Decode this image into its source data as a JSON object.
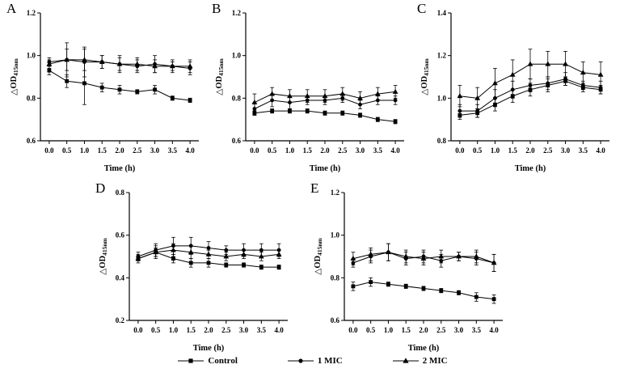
{
  "figure": {
    "background": "#ffffff",
    "line_color": "#000000"
  },
  "legend": {
    "items": [
      {
        "label": "Control",
        "marker": "square"
      },
      {
        "label": "1 MIC",
        "marker": "circle"
      },
      {
        "label": "2 MIC",
        "marker": "triangle"
      }
    ]
  },
  "chart_data": [
    {
      "type": "line",
      "panel": "A",
      "xlabel": "Time (h)",
      "ylabel": "△OD",
      "ylabel_sub": "415nm",
      "x": [
        0,
        0.5,
        1.0,
        1.5,
        2.0,
        2.5,
        3.0,
        3.5,
        4.0
      ],
      "xticks": [
        "0.0",
        "0.5",
        "1.0",
        "1.5",
        "2.0",
        "2.5",
        "3.0",
        "3.5",
        "4.0"
      ],
      "yticks": [
        "0.6",
        "0.8",
        "1.0",
        "1.2"
      ],
      "xlim": [
        -0.25,
        4.25
      ],
      "ylim": [
        0.6,
        1.2
      ],
      "series": [
        {
          "name": "Control",
          "marker": "square",
          "values": [
            0.93,
            0.88,
            0.87,
            0.85,
            0.84,
            0.83,
            0.84,
            0.8,
            0.79
          ],
          "errors": [
            0.02,
            0.03,
            0.1,
            0.02,
            0.02,
            0.01,
            0.02,
            0.01,
            0.01
          ]
        },
        {
          "name": "1 MIC",
          "marker": "circle",
          "values": [
            0.97,
            0.98,
            0.97,
            0.97,
            0.96,
            0.95,
            0.96,
            0.95,
            0.94
          ],
          "errors": [
            0.02,
            0.08,
            0.07,
            0.03,
            0.04,
            0.03,
            0.04,
            0.03,
            0.03
          ]
        },
        {
          "name": "2 MIC",
          "marker": "triangle",
          "values": [
            0.96,
            0.98,
            0.98,
            0.97,
            0.96,
            0.96,
            0.95,
            0.95,
            0.95
          ],
          "errors": [
            0.02,
            0.05,
            0.05,
            0.03,
            0.03,
            0.03,
            0.03,
            0.02,
            0.03
          ]
        }
      ]
    },
    {
      "type": "line",
      "panel": "B",
      "xlabel": "Time (h)",
      "ylabel": "△OD",
      "ylabel_sub": "415nm",
      "x": [
        0,
        0.5,
        1.0,
        1.5,
        2.0,
        2.5,
        3.0,
        3.5,
        4.0
      ],
      "xticks": [
        "0.0",
        "0.5",
        "1.0",
        "1.5",
        "2.0",
        "2.5",
        "3.0",
        "3.5",
        "4.0"
      ],
      "yticks": [
        "0.6",
        "0.8",
        "1.0",
        "1.2"
      ],
      "xlim": [
        -0.25,
        4.25
      ],
      "ylim": [
        0.6,
        1.2
      ],
      "series": [
        {
          "name": "Control",
          "marker": "square",
          "values": [
            0.73,
            0.74,
            0.74,
            0.74,
            0.73,
            0.73,
            0.72,
            0.7,
            0.69
          ],
          "errors": [
            0.01,
            0.01,
            0.01,
            0.01,
            0.01,
            0.01,
            0.01,
            0.01,
            0.01
          ]
        },
        {
          "name": "1 MIC",
          "marker": "circle",
          "values": [
            0.75,
            0.79,
            0.78,
            0.79,
            0.79,
            0.8,
            0.77,
            0.79,
            0.79
          ],
          "errors": [
            0.03,
            0.03,
            0.03,
            0.02,
            0.02,
            0.02,
            0.02,
            0.02,
            0.02
          ]
        },
        {
          "name": "2 MIC",
          "marker": "triangle",
          "values": [
            0.78,
            0.82,
            0.81,
            0.81,
            0.81,
            0.82,
            0.8,
            0.82,
            0.83
          ],
          "errors": [
            0.04,
            0.03,
            0.03,
            0.03,
            0.03,
            0.03,
            0.03,
            0.03,
            0.03
          ]
        }
      ]
    },
    {
      "type": "line",
      "panel": "C",
      "xlabel": "Time (h)",
      "ylabel": "△OD",
      "ylabel_sub": "415nm",
      "x": [
        0,
        0.5,
        1.0,
        1.5,
        2.0,
        2.5,
        3.0,
        3.5,
        4.0
      ],
      "xticks": [
        "0.0",
        "0.5",
        "1.0",
        "1.5",
        "2.0",
        "2.5",
        "3.0",
        "3.5",
        "4.0"
      ],
      "yticks": [
        "0.8",
        "1.0",
        "1.2",
        "1.4"
      ],
      "xlim": [
        -0.25,
        4.25
      ],
      "ylim": [
        0.8,
        1.4
      ],
      "series": [
        {
          "name": "Control",
          "marker": "square",
          "values": [
            0.92,
            0.93,
            0.97,
            1.01,
            1.04,
            1.06,
            1.08,
            1.05,
            1.04
          ],
          "errors": [
            0.02,
            0.02,
            0.03,
            0.03,
            0.03,
            0.03,
            0.02,
            0.02,
            0.02
          ]
        },
        {
          "name": "1 MIC",
          "marker": "circle",
          "values": [
            0.94,
            0.94,
            1.0,
            1.04,
            1.06,
            1.07,
            1.09,
            1.06,
            1.05
          ],
          "errors": [
            0.03,
            0.03,
            0.04,
            0.04,
            0.03,
            0.03,
            0.03,
            0.02,
            0.03
          ]
        },
        {
          "name": "2 MIC",
          "marker": "triangle",
          "values": [
            1.01,
            1.0,
            1.07,
            1.11,
            1.16,
            1.16,
            1.16,
            1.12,
            1.11
          ],
          "errors": [
            0.05,
            0.05,
            0.07,
            0.07,
            0.07,
            0.06,
            0.06,
            0.05,
            0.06
          ]
        }
      ]
    },
    {
      "type": "line",
      "panel": "D",
      "xlabel": "Time (h)",
      "ylabel": "△OD",
      "ylabel_sub": "415nm",
      "x": [
        0,
        0.5,
        1.0,
        1.5,
        2.0,
        2.5,
        3.0,
        3.5,
        4.0
      ],
      "xticks": [
        "0.0",
        "0.5",
        "1.0",
        "1.5",
        "2.0",
        "2.5",
        "3.0",
        "3.5",
        "4.0"
      ],
      "yticks": [
        "0.2",
        "0.4",
        "0.6",
        "0.8"
      ],
      "xlim": [
        -0.25,
        4.25
      ],
      "ylim": [
        0.2,
        0.8
      ],
      "series": [
        {
          "name": "Control",
          "marker": "square",
          "values": [
            0.49,
            0.52,
            0.49,
            0.47,
            0.47,
            0.46,
            0.46,
            0.45,
            0.45
          ],
          "errors": [
            0.01,
            0.02,
            0.02,
            0.02,
            0.02,
            0.01,
            0.01,
            0.01,
            0.01
          ]
        },
        {
          "name": "1 MIC",
          "marker": "circle",
          "values": [
            0.5,
            0.53,
            0.55,
            0.55,
            0.54,
            0.53,
            0.53,
            0.53,
            0.53
          ],
          "errors": [
            0.02,
            0.03,
            0.04,
            0.04,
            0.03,
            0.02,
            0.03,
            0.03,
            0.03
          ]
        },
        {
          "name": "2 MIC",
          "marker": "triangle",
          "values": [
            0.49,
            0.52,
            0.53,
            0.52,
            0.51,
            0.5,
            0.51,
            0.5,
            0.51
          ],
          "errors": [
            0.02,
            0.03,
            0.03,
            0.03,
            0.02,
            0.02,
            0.02,
            0.02,
            0.02
          ]
        }
      ]
    },
    {
      "type": "line",
      "panel": "E",
      "xlabel": "Time (h)",
      "ylabel": "△OD",
      "ylabel_sub": "415nm",
      "x": [
        0,
        0.5,
        1.0,
        1.5,
        2.0,
        2.5,
        3.0,
        3.5,
        4.0
      ],
      "xticks": [
        "0.0",
        "0.5",
        "1.0",
        "1.5",
        "2.0",
        "2.5",
        "3.0",
        "3.5",
        "4.0"
      ],
      "yticks": [
        "0.6",
        "0.8",
        "1.0",
        "1.2"
      ],
      "xlim": [
        -0.25,
        4.25
      ],
      "ylim": [
        0.6,
        1.2
      ],
      "series": [
        {
          "name": "Control",
          "marker": "square",
          "values": [
            0.76,
            0.78,
            0.77,
            0.76,
            0.75,
            0.74,
            0.73,
            0.71,
            0.7
          ],
          "errors": [
            0.02,
            0.02,
            0.01,
            0.01,
            0.01,
            0.01,
            0.01,
            0.02,
            0.02
          ]
        },
        {
          "name": "1 MIC",
          "marker": "circle",
          "values": [
            0.87,
            0.9,
            0.92,
            0.89,
            0.9,
            0.88,
            0.9,
            0.89,
            0.87
          ],
          "errors": [
            0.02,
            0.03,
            0.04,
            0.03,
            0.03,
            0.03,
            0.02,
            0.03,
            0.04
          ]
        },
        {
          "name": "2 MIC",
          "marker": "triangle",
          "values": [
            0.89,
            0.91,
            0.92,
            0.9,
            0.89,
            0.9,
            0.9,
            0.9,
            0.87
          ],
          "errors": [
            0.03,
            0.03,
            0.04,
            0.03,
            0.03,
            0.03,
            0.02,
            0.03,
            0.04
          ]
        }
      ]
    }
  ]
}
